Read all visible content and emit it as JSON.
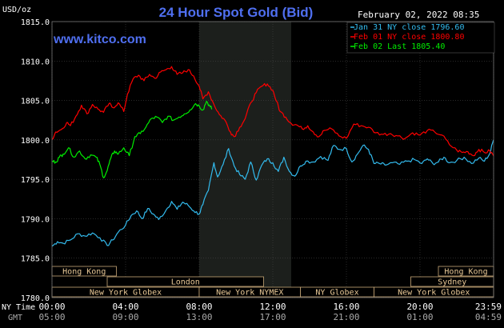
{
  "chart_data": {
    "type": "line",
    "title": "24 Hour Spot Gold (Bid)",
    "subtitle": "www.kitco.com",
    "date_label": "February 02, 2022 08:35",
    "y_unit": "USD/oz",
    "ylim": [
      1780.0,
      1815.0
    ],
    "y_ticks": [
      "1815.0",
      "1810.0",
      "1805.0",
      "1800.0",
      "1795.0",
      "1790.0",
      "1785.0",
      "1780.0"
    ],
    "x_ticks": [
      "00:00",
      "04:00",
      "08:00",
      "12:00",
      "16:00",
      "20:00",
      "23:59"
    ],
    "x_ticks_gmt": [
      "05:00",
      "09:00",
      "13:00",
      "17:00",
      "21:00",
      "01:00",
      "04:59"
    ],
    "x_axis_labels": {
      "ny": "NY Time",
      "gmt": "GMT"
    },
    "grid": true,
    "legend_position": "top-right",
    "shaded_period": [
      8.0,
      13.0
    ],
    "series": [
      {
        "name": "Jan 31 NY close 1796.60",
        "color": "#33bbee",
        "points": [
          [
            0,
            1786.5
          ],
          [
            0.3,
            1787.1
          ],
          [
            0.6,
            1786.9
          ],
          [
            1.0,
            1787.3
          ],
          [
            1.4,
            1788.1
          ],
          [
            1.8,
            1787.8
          ],
          [
            2.2,
            1788.2
          ],
          [
            2.6,
            1787.6
          ],
          [
            3.0,
            1786.6
          ],
          [
            3.3,
            1787.3
          ],
          [
            3.6,
            1788.3
          ],
          [
            4.0,
            1789.2
          ],
          [
            4.3,
            1790.4
          ],
          [
            4.6,
            1791.0
          ],
          [
            4.9,
            1790.0
          ],
          [
            5.2,
            1791.3
          ],
          [
            5.5,
            1790.6
          ],
          [
            5.8,
            1789.9
          ],
          [
            6.2,
            1791.1
          ],
          [
            6.5,
            1792.2
          ],
          [
            6.8,
            1791.2
          ],
          [
            7.1,
            1792.1
          ],
          [
            7.4,
            1791.7
          ],
          [
            7.7,
            1791.0
          ],
          [
            8.0,
            1790.6
          ],
          [
            8.2,
            1791.8
          ],
          [
            8.5,
            1793.6
          ],
          [
            8.8,
            1797.1
          ],
          [
            9.0,
            1795.3
          ],
          [
            9.3,
            1796.9
          ],
          [
            9.6,
            1798.9
          ],
          [
            9.9,
            1796.7
          ],
          [
            10.2,
            1795.6
          ],
          [
            10.5,
            1795.0
          ],
          [
            10.8,
            1797.2
          ],
          [
            11.1,
            1794.9
          ],
          [
            11.4,
            1796.8
          ],
          [
            11.7,
            1797.6
          ],
          [
            12.0,
            1797.1
          ],
          [
            12.3,
            1796.0
          ],
          [
            12.6,
            1797.8
          ],
          [
            12.9,
            1796.0
          ],
          [
            13.2,
            1795.4
          ],
          [
            13.5,
            1796.7
          ],
          [
            13.8,
            1797.3
          ],
          [
            14.2,
            1797.2
          ],
          [
            14.6,
            1797.9
          ],
          [
            15.0,
            1797.4
          ],
          [
            15.3,
            1799.3
          ],
          [
            15.6,
            1798.8
          ],
          [
            16.0,
            1798.9
          ],
          [
            16.3,
            1797.2
          ],
          [
            16.6,
            1798.2
          ],
          [
            16.9,
            1799.3
          ],
          [
            17.2,
            1798.8
          ],
          [
            17.5,
            1797.0
          ],
          [
            17.8,
            1797.0
          ],
          [
            18.1,
            1796.8
          ],
          [
            18.5,
            1797.1
          ],
          [
            18.9,
            1796.9
          ],
          [
            19.3,
            1797.3
          ],
          [
            19.7,
            1797.5
          ],
          [
            20.1,
            1797.0
          ],
          [
            20.4,
            1797.6
          ],
          [
            20.7,
            1797.0
          ],
          [
            21.0,
            1797.2
          ],
          [
            21.3,
            1797.8
          ],
          [
            21.6,
            1797.1
          ],
          [
            22.0,
            1797.4
          ],
          [
            22.4,
            1797.8
          ],
          [
            22.8,
            1797.0
          ],
          [
            23.2,
            1797.7
          ],
          [
            23.5,
            1797.3
          ],
          [
            23.8,
            1798.3
          ],
          [
            23.99,
            1800.0
          ]
        ]
      },
      {
        "name": "Feb 01 NY close 1800.80",
        "color": "#ff0000",
        "points": [
          [
            0,
            1800.1
          ],
          [
            0.2,
            1801.0
          ],
          [
            0.5,
            1801.3
          ],
          [
            0.8,
            1802.2
          ],
          [
            1.0,
            1801.8
          ],
          [
            1.3,
            1803.0
          ],
          [
            1.6,
            1804.4
          ],
          [
            1.9,
            1803.3
          ],
          [
            2.2,
            1804.5
          ],
          [
            2.5,
            1803.9
          ],
          [
            2.8,
            1803.5
          ],
          [
            3.1,
            1804.6
          ],
          [
            3.3,
            1804.1
          ],
          [
            3.6,
            1804.7
          ],
          [
            3.9,
            1803.6
          ],
          [
            4.1,
            1805.8
          ],
          [
            4.4,
            1807.7
          ],
          [
            4.7,
            1808.2
          ],
          [
            5.0,
            1807.5
          ],
          [
            5.3,
            1808.3
          ],
          [
            5.6,
            1807.8
          ],
          [
            5.9,
            1808.6
          ],
          [
            6.2,
            1808.9
          ],
          [
            6.5,
            1809.3
          ],
          [
            6.8,
            1808.3
          ],
          [
            7.1,
            1808.5
          ],
          [
            7.4,
            1808.9
          ],
          [
            7.7,
            1808.1
          ],
          [
            8.0,
            1806.8
          ],
          [
            8.2,
            1805.2
          ],
          [
            8.5,
            1806.1
          ],
          [
            8.8,
            1804.5
          ],
          [
            9.1,
            1803.2
          ],
          [
            9.4,
            1802.5
          ],
          [
            9.7,
            1801.0
          ],
          [
            9.9,
            1800.4
          ],
          [
            10.2,
            1801.6
          ],
          [
            10.5,
            1802.7
          ],
          [
            10.8,
            1804.7
          ],
          [
            11.1,
            1806.0
          ],
          [
            11.4,
            1806.8
          ],
          [
            11.7,
            1807.1
          ],
          [
            12.0,
            1806.3
          ],
          [
            12.2,
            1804.9
          ],
          [
            12.4,
            1803.6
          ],
          [
            12.7,
            1802.9
          ],
          [
            13.0,
            1802.1
          ],
          [
            13.3,
            1801.9
          ],
          [
            13.6,
            1801.4
          ],
          [
            13.9,
            1801.8
          ],
          [
            14.2,
            1801.0
          ],
          [
            14.5,
            1800.4
          ],
          [
            14.8,
            1801.2
          ],
          [
            15.2,
            1801.4
          ],
          [
            15.6,
            1800.5
          ],
          [
            16.0,
            1800.2
          ],
          [
            16.4,
            1802.0
          ],
          [
            16.8,
            1801.8
          ],
          [
            17.2,
            1801.6
          ],
          [
            17.6,
            1800.9
          ],
          [
            18.0,
            1800.7
          ],
          [
            18.4,
            1800.8
          ],
          [
            18.8,
            1800.5
          ],
          [
            19.2,
            1800.2
          ],
          [
            19.6,
            1800.9
          ],
          [
            20.0,
            1800.6
          ],
          [
            20.4,
            1801.2
          ],
          [
            20.8,
            1801.0
          ],
          [
            21.2,
            1800.6
          ],
          [
            21.6,
            1799.4
          ],
          [
            22.0,
            1798.7
          ],
          [
            22.3,
            1798.4
          ],
          [
            22.6,
            1798.5
          ],
          [
            22.9,
            1798.0
          ],
          [
            23.2,
            1798.8
          ],
          [
            23.5,
            1798.4
          ],
          [
            23.8,
            1798.6
          ],
          [
            23.99,
            1798.0
          ]
        ]
      },
      {
        "name": "Feb 02 Last 1805.40",
        "color": "#00ee00",
        "points": [
          [
            0,
            1797.3
          ],
          [
            0.2,
            1797.2
          ],
          [
            0.4,
            1797.8
          ],
          [
            0.6,
            1798.2
          ],
          [
            0.9,
            1799.0
          ],
          [
            1.2,
            1797.8
          ],
          [
            1.5,
            1798.6
          ],
          [
            1.8,
            1797.6
          ],
          [
            2.1,
            1798.1
          ],
          [
            2.4,
            1797.8
          ],
          [
            2.6,
            1796.9
          ],
          [
            2.8,
            1795.2
          ],
          [
            3.0,
            1796.1
          ],
          [
            3.2,
            1797.7
          ],
          [
            3.4,
            1798.6
          ],
          [
            3.6,
            1798.2
          ],
          [
            3.9,
            1799.0
          ],
          [
            4.2,
            1798.0
          ],
          [
            4.5,
            1800.4
          ],
          [
            4.8,
            1800.8
          ],
          [
            5.1,
            1801.6
          ],
          [
            5.4,
            1802.7
          ],
          [
            5.7,
            1802.9
          ],
          [
            6.0,
            1802.2
          ],
          [
            6.3,
            1803.0
          ],
          [
            6.6,
            1802.5
          ],
          [
            6.9,
            1802.9
          ],
          [
            7.2,
            1803.3
          ],
          [
            7.5,
            1803.8
          ],
          [
            7.8,
            1804.6
          ],
          [
            8.0,
            1804.3
          ],
          [
            8.2,
            1803.8
          ],
          [
            8.4,
            1804.9
          ],
          [
            8.6,
            1804.2
          ],
          [
            8.7,
            1803.9
          ]
        ]
      }
    ]
  },
  "market_sessions": {
    "row1": [
      {
        "label": "Hong Kong",
        "start": 0.0,
        "end": 3.5
      },
      {
        "label": "Hong Kong",
        "start": 21.0,
        "end": 24.0
      }
    ],
    "row2": [
      {
        "label": "London",
        "start": 3.0,
        "end": 11.5
      },
      {
        "label": "Sydney",
        "start": 19.5,
        "end": 24.0
      }
    ],
    "row3": [
      {
        "label": "New York Globex",
        "start": 0.0,
        "end": 8.0
      },
      {
        "label": "New York NYMEX",
        "start": 8.0,
        "end": 13.5
      },
      {
        "label": "NY Globex",
        "start": 13.5,
        "end": 17.5
      },
      {
        "label": "New York Globex",
        "start": 17.5,
        "end": 24.0
      }
    ]
  }
}
